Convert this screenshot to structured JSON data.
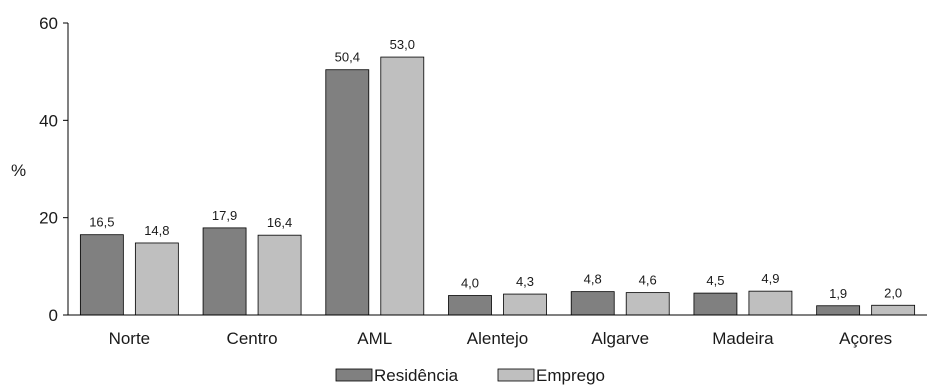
{
  "chart_data": {
    "type": "bar",
    "ylabel": "%",
    "ylim": [
      0,
      60
    ],
    "yticks": [
      0,
      20,
      40,
      60
    ],
    "grid": false,
    "legend_position": "bottom",
    "categories": [
      "Norte",
      "Centro",
      "AML",
      "Alentejo",
      "Algarve",
      "Madeira",
      "Açores"
    ],
    "series": [
      {
        "name": "Residência",
        "color": "#808080",
        "values": [
          16.5,
          17.9,
          50.4,
          4.0,
          4.8,
          4.5,
          1.9
        ],
        "labels": [
          "16,5",
          "17,9",
          "50,4",
          "4,0",
          "4,8",
          "4,5",
          "1,9"
        ]
      },
      {
        "name": "Emprego",
        "color": "#bfbfbf",
        "values": [
          14.8,
          16.4,
          53.0,
          4.3,
          4.6,
          4.9,
          2.0
        ],
        "labels": [
          "14,8",
          "16,4",
          "53,0",
          "4,3",
          "4,6",
          "4,9",
          "2,0"
        ]
      }
    ]
  }
}
